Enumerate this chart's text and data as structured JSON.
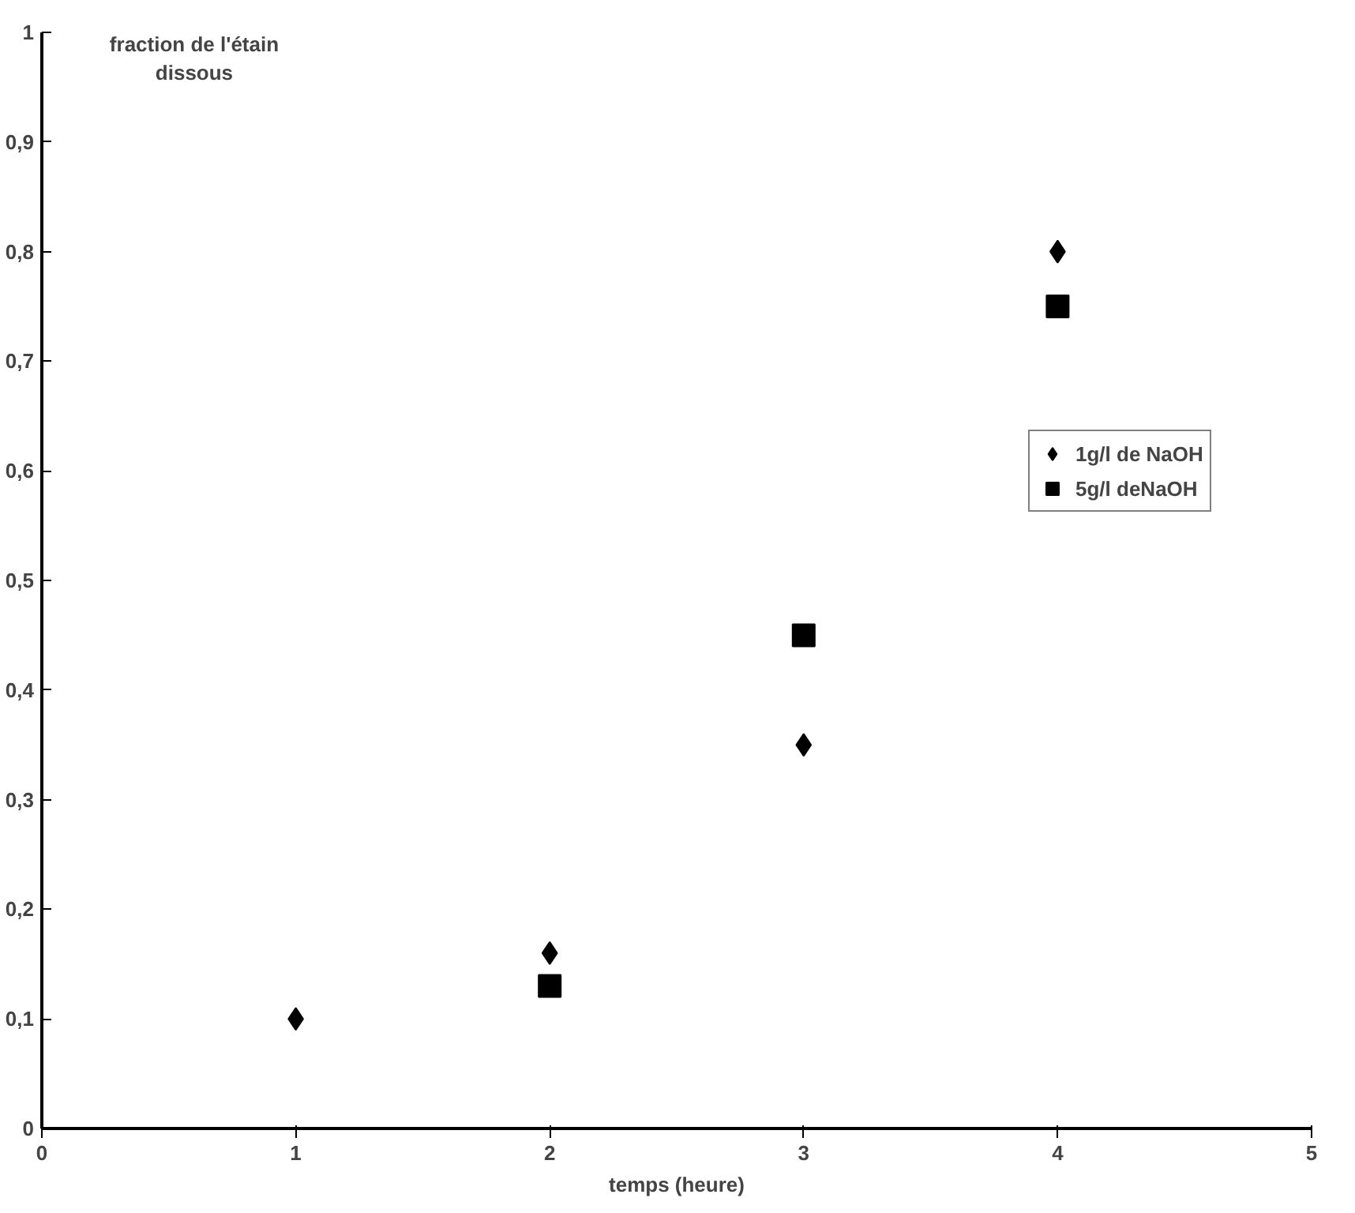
{
  "chart_data": {
    "type": "scatter",
    "ylabel": "fraction de l'étain dissous",
    "xlabel": "temps (heure)",
    "xlim": [
      0,
      5
    ],
    "xticks": [
      0,
      1,
      2,
      3,
      4,
      5
    ],
    "ylim": [
      0,
      1
    ],
    "yticks": [
      0,
      {
        "value": 0.1,
        "label": "0,1"
      },
      {
        "value": 0.2,
        "label": "0,2"
      },
      {
        "value": 0.3,
        "label": "0,3"
      },
      {
        "value": 0.4,
        "label": "0,4"
      },
      {
        "value": 0.5,
        "label": "0,5"
      },
      {
        "value": 0.6,
        "label": "0,6"
      },
      {
        "value": 0.7,
        "label": "0,7"
      },
      {
        "value": 0.8,
        "label": "0,8"
      },
      {
        "value": 0.9,
        "label": "0,9"
      },
      1
    ],
    "grid": false,
    "legend": "right",
    "series": [
      {
        "name": "1g/l de NaOH",
        "color": "#000000",
        "marker": "diamond",
        "x": [
          1,
          2,
          3,
          4
        ],
        "values": [
          0.1,
          0.16,
          0.35,
          0.8
        ]
      },
      {
        "name": "5g/l deNaOH",
        "color": "#000000",
        "marker": "square",
        "x": [
          2,
          3,
          4
        ],
        "values": [
          0.13,
          0.45,
          0.75
        ]
      }
    ]
  }
}
